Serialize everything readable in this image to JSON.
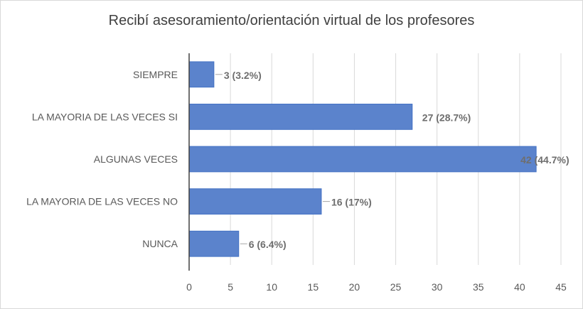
{
  "chart_data": {
    "type": "bar",
    "orientation": "horizontal",
    "title": "Recibí asesoramiento/orientación virtual de los profesores",
    "categories": [
      "SIEMPRE",
      "LA MAYORIA DE LAS VECES SI",
      "ALGUNAS VECES",
      "LA MAYORIA DE LAS VECES NO",
      "NUNCA"
    ],
    "values": [
      3,
      27,
      42,
      16,
      6
    ],
    "data_labels": [
      "3 (3.2%)",
      "27 (28.7%)",
      "42 (44.7%)",
      "16 (17%)",
      "6 (6.4%)"
    ],
    "xlim": [
      0,
      45
    ],
    "x_ticks": [
      "0",
      "5",
      "10",
      "15",
      "20",
      "25",
      "30",
      "35",
      "40",
      "45"
    ],
    "grid": true,
    "legend": "none",
    "colors": {
      "bar": "#4472c4",
      "bar_fill": "#5b83cc",
      "grid": "#d9d9d9",
      "axis": "#404040"
    }
  }
}
